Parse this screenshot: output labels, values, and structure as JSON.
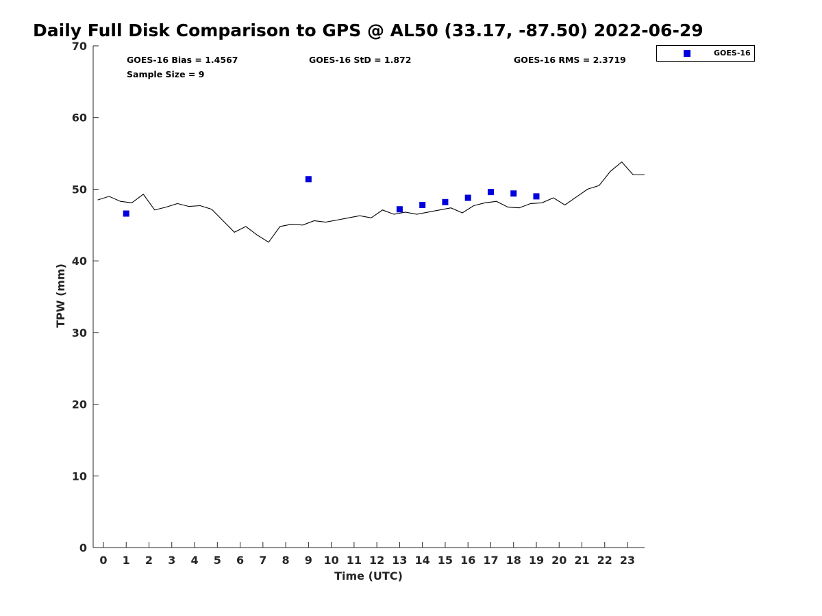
{
  "title": "Daily Full Disk Comparison to GPS @ AL50 (33.17, -87.50) 2022-06-29",
  "stats": {
    "bias": "GOES-16 Bias = 1.4567",
    "std": "GOES-16 StD = 1.872",
    "rms": "GOES-16 RMS = 2.3719",
    "sample": "Sample Size = 9"
  },
  "chart_data": {
    "type": "line",
    "xlabel": "Time (UTC)",
    "ylabel": "TPW (mm)",
    "xlim": [
      -0.45,
      23.75
    ],
    "ylim": [
      0,
      70
    ],
    "xticks": [
      "0",
      "1",
      "2",
      "3",
      "4",
      "5",
      "6",
      "7",
      "8",
      "9",
      "10",
      "11",
      "12",
      "13",
      "14",
      "15",
      "16",
      "17",
      "18",
      "19",
      "20",
      "21",
      "22",
      "23"
    ],
    "yticks": [
      "0",
      "10",
      "20",
      "30",
      "40",
      "50",
      "60",
      "70"
    ],
    "grid": false,
    "legend": {
      "position": "top-right-outside",
      "entries": [
        "GOES-16"
      ]
    },
    "series": [
      {
        "kind": "line",
        "color": "#000000",
        "x": [
          -0.25,
          0.25,
          0.75,
          1.25,
          1.75,
          2.25,
          2.75,
          3.25,
          3.75,
          4.25,
          4.75,
          5.25,
          5.75,
          6.25,
          6.75,
          7.25,
          7.75,
          8.25,
          8.75,
          9.25,
          9.75,
          10.25,
          10.75,
          11.25,
          11.75,
          12.25,
          12.75,
          13.25,
          13.75,
          14.25,
          14.75,
          15.25,
          15.75,
          16.25,
          16.75,
          17.25,
          17.75,
          18.25,
          18.75,
          19.25,
          19.75,
          20.25,
          20.75,
          21.25,
          21.75,
          22.25,
          22.75,
          23.25,
          23.75
        ],
        "values": [
          48.5,
          49.0,
          48.3,
          48.1,
          49.3,
          47.1,
          47.5,
          48.0,
          47.6,
          47.7,
          47.2,
          45.6,
          44.0,
          44.8,
          43.6,
          42.6,
          44.8,
          45.1,
          45.0,
          45.6,
          45.4,
          45.7,
          46.0,
          46.3,
          46.0,
          47.1,
          46.5,
          46.8,
          46.5,
          46.8,
          47.1,
          47.4,
          46.7,
          47.7,
          48.1,
          48.3,
          47.5,
          47.4,
          48.0,
          48.1,
          48.8,
          47.8,
          48.9,
          50.0,
          50.5,
          52.5,
          53.8,
          52.0,
          52.0
        ]
      },
      {
        "name": "GOES-16",
        "kind": "scatter",
        "color": "#0000dd",
        "x": [
          1,
          9,
          13,
          14,
          15,
          16,
          17,
          18,
          19
        ],
        "values": [
          46.6,
          51.4,
          47.2,
          47.8,
          48.2,
          48.8,
          49.6,
          49.4,
          49.0
        ]
      }
    ]
  }
}
